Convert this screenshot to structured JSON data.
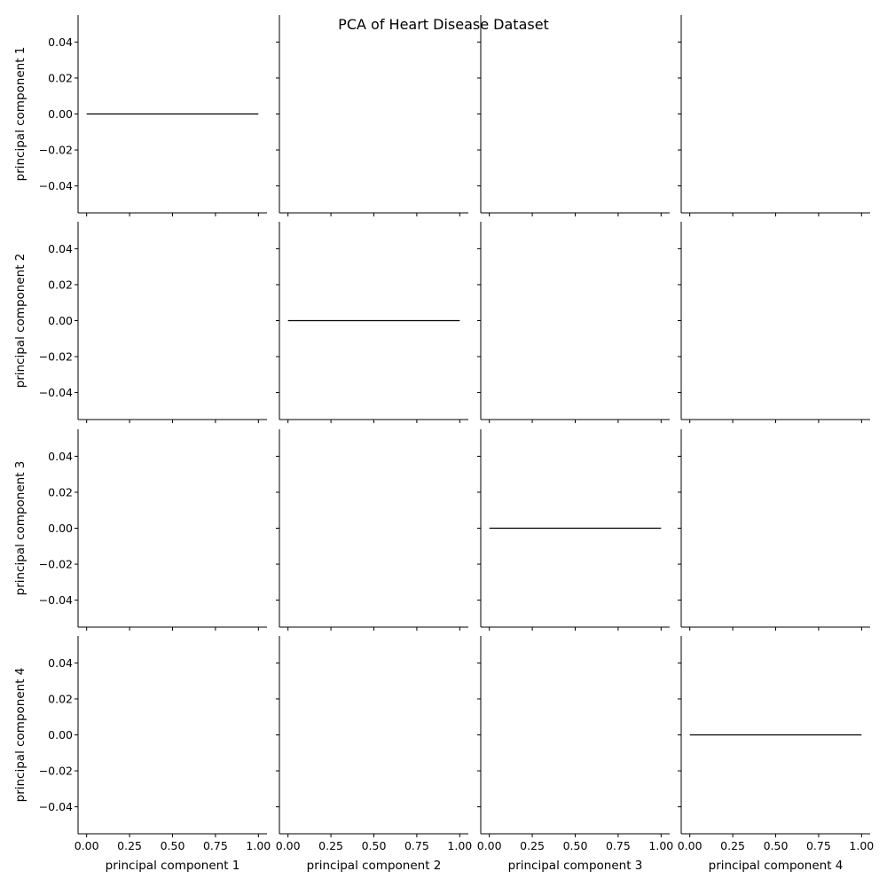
{
  "chart_data": {
    "type": "line",
    "title": "PCA of Heart Disease Dataset",
    "variables": [
      "principal component 1",
      "principal component 2",
      "principal component 3",
      "principal component 4"
    ],
    "xlim": [
      -0.05,
      1.05
    ],
    "ylim": [
      -0.055,
      0.055
    ],
    "xticks": [
      0.0,
      0.25,
      0.5,
      0.75,
      1.0
    ],
    "xtick_labels": [
      "0.00",
      "0.25",
      "0.50",
      "0.75",
      "1.00"
    ],
    "yticks": [
      0.04,
      0.02,
      0.0,
      -0.02,
      -0.04
    ],
    "ytick_labels": [
      "0.04",
      "0.02",
      "0.00",
      "−0.02",
      "−0.04"
    ],
    "diagonal_line": {
      "x": [
        0.0,
        1.0
      ],
      "y": [
        0.0,
        0.0
      ]
    },
    "off_diagonal": "empty",
    "grid": false,
    "legend": "none",
    "line_color": "#000000",
    "axis_color": "#000000"
  }
}
